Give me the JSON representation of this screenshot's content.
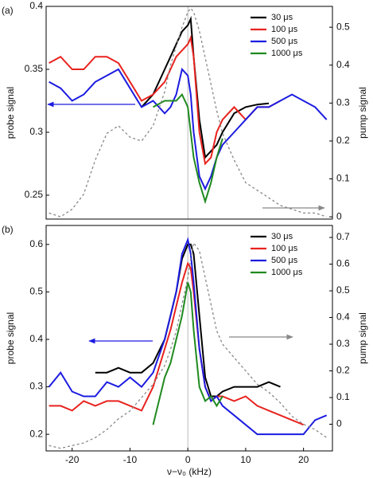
{
  "chart_data": [
    {
      "type": "line",
      "title": "(a)",
      "ylabel": "probe signal",
      "y2label": "pump signal",
      "xlim": [
        -24.5,
        25
      ],
      "ylim": [
        0.231,
        0.4
      ],
      "yticks": [
        0.25,
        0.3,
        0.35,
        0.4
      ],
      "y2lim": [
        -0.006,
        0.555
      ],
      "y2ticks": [
        0,
        0.1,
        0.2,
        0.3,
        0.4,
        0.5
      ],
      "vline": 0,
      "legend": "upper right",
      "x": [
        -24,
        -22,
        -20,
        -18,
        -16,
        -14,
        -12,
        -10,
        -8,
        -6,
        -4,
        -3,
        -2,
        -1,
        0,
        0.5,
        1,
        2,
        3,
        4,
        5,
        6,
        8,
        10,
        12,
        14,
        16,
        18,
        20,
        22,
        24
      ],
      "series": [
        {
          "name": "30 μs",
          "color": "#000000",
          "values": [
            null,
            null,
            null,
            null,
            null,
            null,
            null,
            null,
            0.32,
            0.33,
            0.35,
            0.36,
            0.37,
            0.38,
            0.385,
            0.39,
            0.36,
            0.31,
            0.28,
            0.285,
            0.29,
            0.3,
            0.315,
            0.32,
            0.322,
            0.323,
            null,
            null,
            null,
            null,
            null
          ]
        },
        {
          "name": "100 μs",
          "color": "#e8231f",
          "values": [
            0.355,
            0.36,
            0.35,
            0.35,
            0.36,
            0.36,
            0.355,
            0.34,
            0.325,
            0.33,
            0.34,
            0.35,
            0.36,
            0.365,
            0.37,
            0.375,
            0.36,
            0.3,
            0.275,
            0.28,
            0.3,
            0.31,
            0.32,
            0.31,
            0.32,
            0.32,
            0.325,
            null,
            null,
            null,
            null
          ]
        },
        {
          "name": "500 μs",
          "color": "#1c1ce0",
          "values": [
            0.34,
            0.335,
            0.325,
            0.33,
            0.34,
            0.345,
            0.35,
            0.335,
            0.32,
            0.325,
            0.315,
            0.32,
            0.33,
            0.35,
            0.345,
            0.33,
            0.3,
            0.265,
            0.255,
            0.265,
            0.28,
            0.29,
            0.3,
            0.31,
            0.32,
            0.32,
            0.325,
            0.33,
            0.325,
            0.32,
            0.31
          ]
        },
        {
          "name": "1000 μs",
          "color": "#1f8a1f",
          "values": [
            null,
            null,
            null,
            null,
            null,
            null,
            null,
            null,
            null,
            0.32,
            0.325,
            0.325,
            0.325,
            0.33,
            0.32,
            0.3,
            0.28,
            0.26,
            0.245,
            0.26,
            0.28,
            0.295,
            null,
            null,
            null,
            null,
            null,
            null,
            null,
            null,
            null
          ]
        },
        {
          "color": "#888888",
          "axis": "y2",
          "linestyle": "dashed",
          "values": [
            0.01,
            0.0,
            0.02,
            0.06,
            0.15,
            0.22,
            0.24,
            0.21,
            0.2,
            0.24,
            0.33,
            0.4,
            0.45,
            0.5,
            0.54,
            0.55,
            0.54,
            0.49,
            0.42,
            0.35,
            0.28,
            0.22,
            0.15,
            0.09,
            0.07,
            0.05,
            0.03,
            0.02,
            0.01,
            0.01,
            0.0
          ]
        }
      ]
    },
    {
      "type": "line",
      "title": "(b)",
      "ylabel": "probe signal",
      "y2label": "pump signal",
      "xlabel": "ν−ν₀ (kHz)",
      "xlim": [
        -24.5,
        25
      ],
      "xticks": [
        -20,
        -10,
        0,
        10,
        20
      ],
      "ylim": [
        0.165,
        0.64
      ],
      "yticks": [
        0.2,
        0.3,
        0.4,
        0.5,
        0.6
      ],
      "y2lim": [
        -0.1,
        0.745
      ],
      "y2ticks": [
        0,
        0.1,
        0.2,
        0.3,
        0.4,
        0.5,
        0.6,
        0.7
      ],
      "vline": 0,
      "legend": "upper right",
      "x": [
        -24,
        -22,
        -20,
        -18,
        -16,
        -14,
        -12,
        -10,
        -8,
        -6,
        -4,
        -3,
        -2,
        -1,
        0,
        0.5,
        1,
        2,
        3,
        4,
        5,
        6,
        8,
        10,
        12,
        14,
        16,
        18,
        20,
        22,
        24
      ],
      "series": [
        {
          "name": "30 μs",
          "color": "#000000",
          "values": [
            null,
            null,
            null,
            null,
            0.33,
            0.33,
            0.34,
            0.33,
            0.33,
            0.35,
            0.4,
            0.45,
            0.5,
            0.57,
            0.6,
            0.6,
            0.58,
            0.45,
            0.32,
            0.28,
            0.28,
            0.29,
            0.3,
            0.3,
            0.3,
            0.31,
            0.3,
            null,
            null,
            null,
            null
          ]
        },
        {
          "name": "100 μs",
          "color": "#e8231f",
          "values": [
            0.26,
            0.26,
            0.25,
            0.27,
            0.26,
            0.27,
            0.27,
            0.26,
            0.25,
            0.3,
            0.38,
            0.42,
            0.47,
            0.52,
            0.56,
            0.55,
            0.5,
            0.38,
            0.3,
            0.27,
            0.28,
            0.28,
            0.27,
            0.28,
            0.26,
            0.25,
            0.24,
            0.23,
            0.22,
            null,
            null
          ]
        },
        {
          "name": "500 μs",
          "color": "#1c1ce0",
          "values": [
            0.3,
            0.33,
            0.29,
            0.28,
            0.28,
            0.31,
            0.3,
            0.32,
            0.3,
            0.33,
            0.4,
            0.45,
            0.5,
            0.58,
            0.61,
            0.58,
            0.52,
            0.38,
            0.3,
            0.27,
            0.28,
            0.26,
            0.24,
            0.22,
            0.2,
            0.2,
            0.2,
            0.2,
            0.2,
            0.23,
            0.24
          ]
        },
        {
          "name": "1000 μs",
          "color": "#1f8a1f",
          "values": [
            null,
            null,
            null,
            null,
            null,
            null,
            null,
            null,
            null,
            0.22,
            0.32,
            0.35,
            0.4,
            0.45,
            0.52,
            0.5,
            0.42,
            0.3,
            0.27,
            0.28,
            0.26,
            0.28,
            null,
            null,
            null,
            null,
            null,
            null,
            null,
            null,
            null
          ]
        },
        {
          "color": "#888888",
          "axis": "y2",
          "linestyle": "dashed",
          "values": [
            -0.08,
            -0.09,
            -0.08,
            -0.07,
            -0.05,
            -0.02,
            0.02,
            0.05,
            0.1,
            0.15,
            0.22,
            0.28,
            0.35,
            0.45,
            0.55,
            0.62,
            0.68,
            0.65,
            0.55,
            0.45,
            0.35,
            0.3,
            0.25,
            0.2,
            0.15,
            0.12,
            0.08,
            0.03,
            0.0,
            -0.02,
            -0.05
          ]
        }
      ]
    }
  ]
}
